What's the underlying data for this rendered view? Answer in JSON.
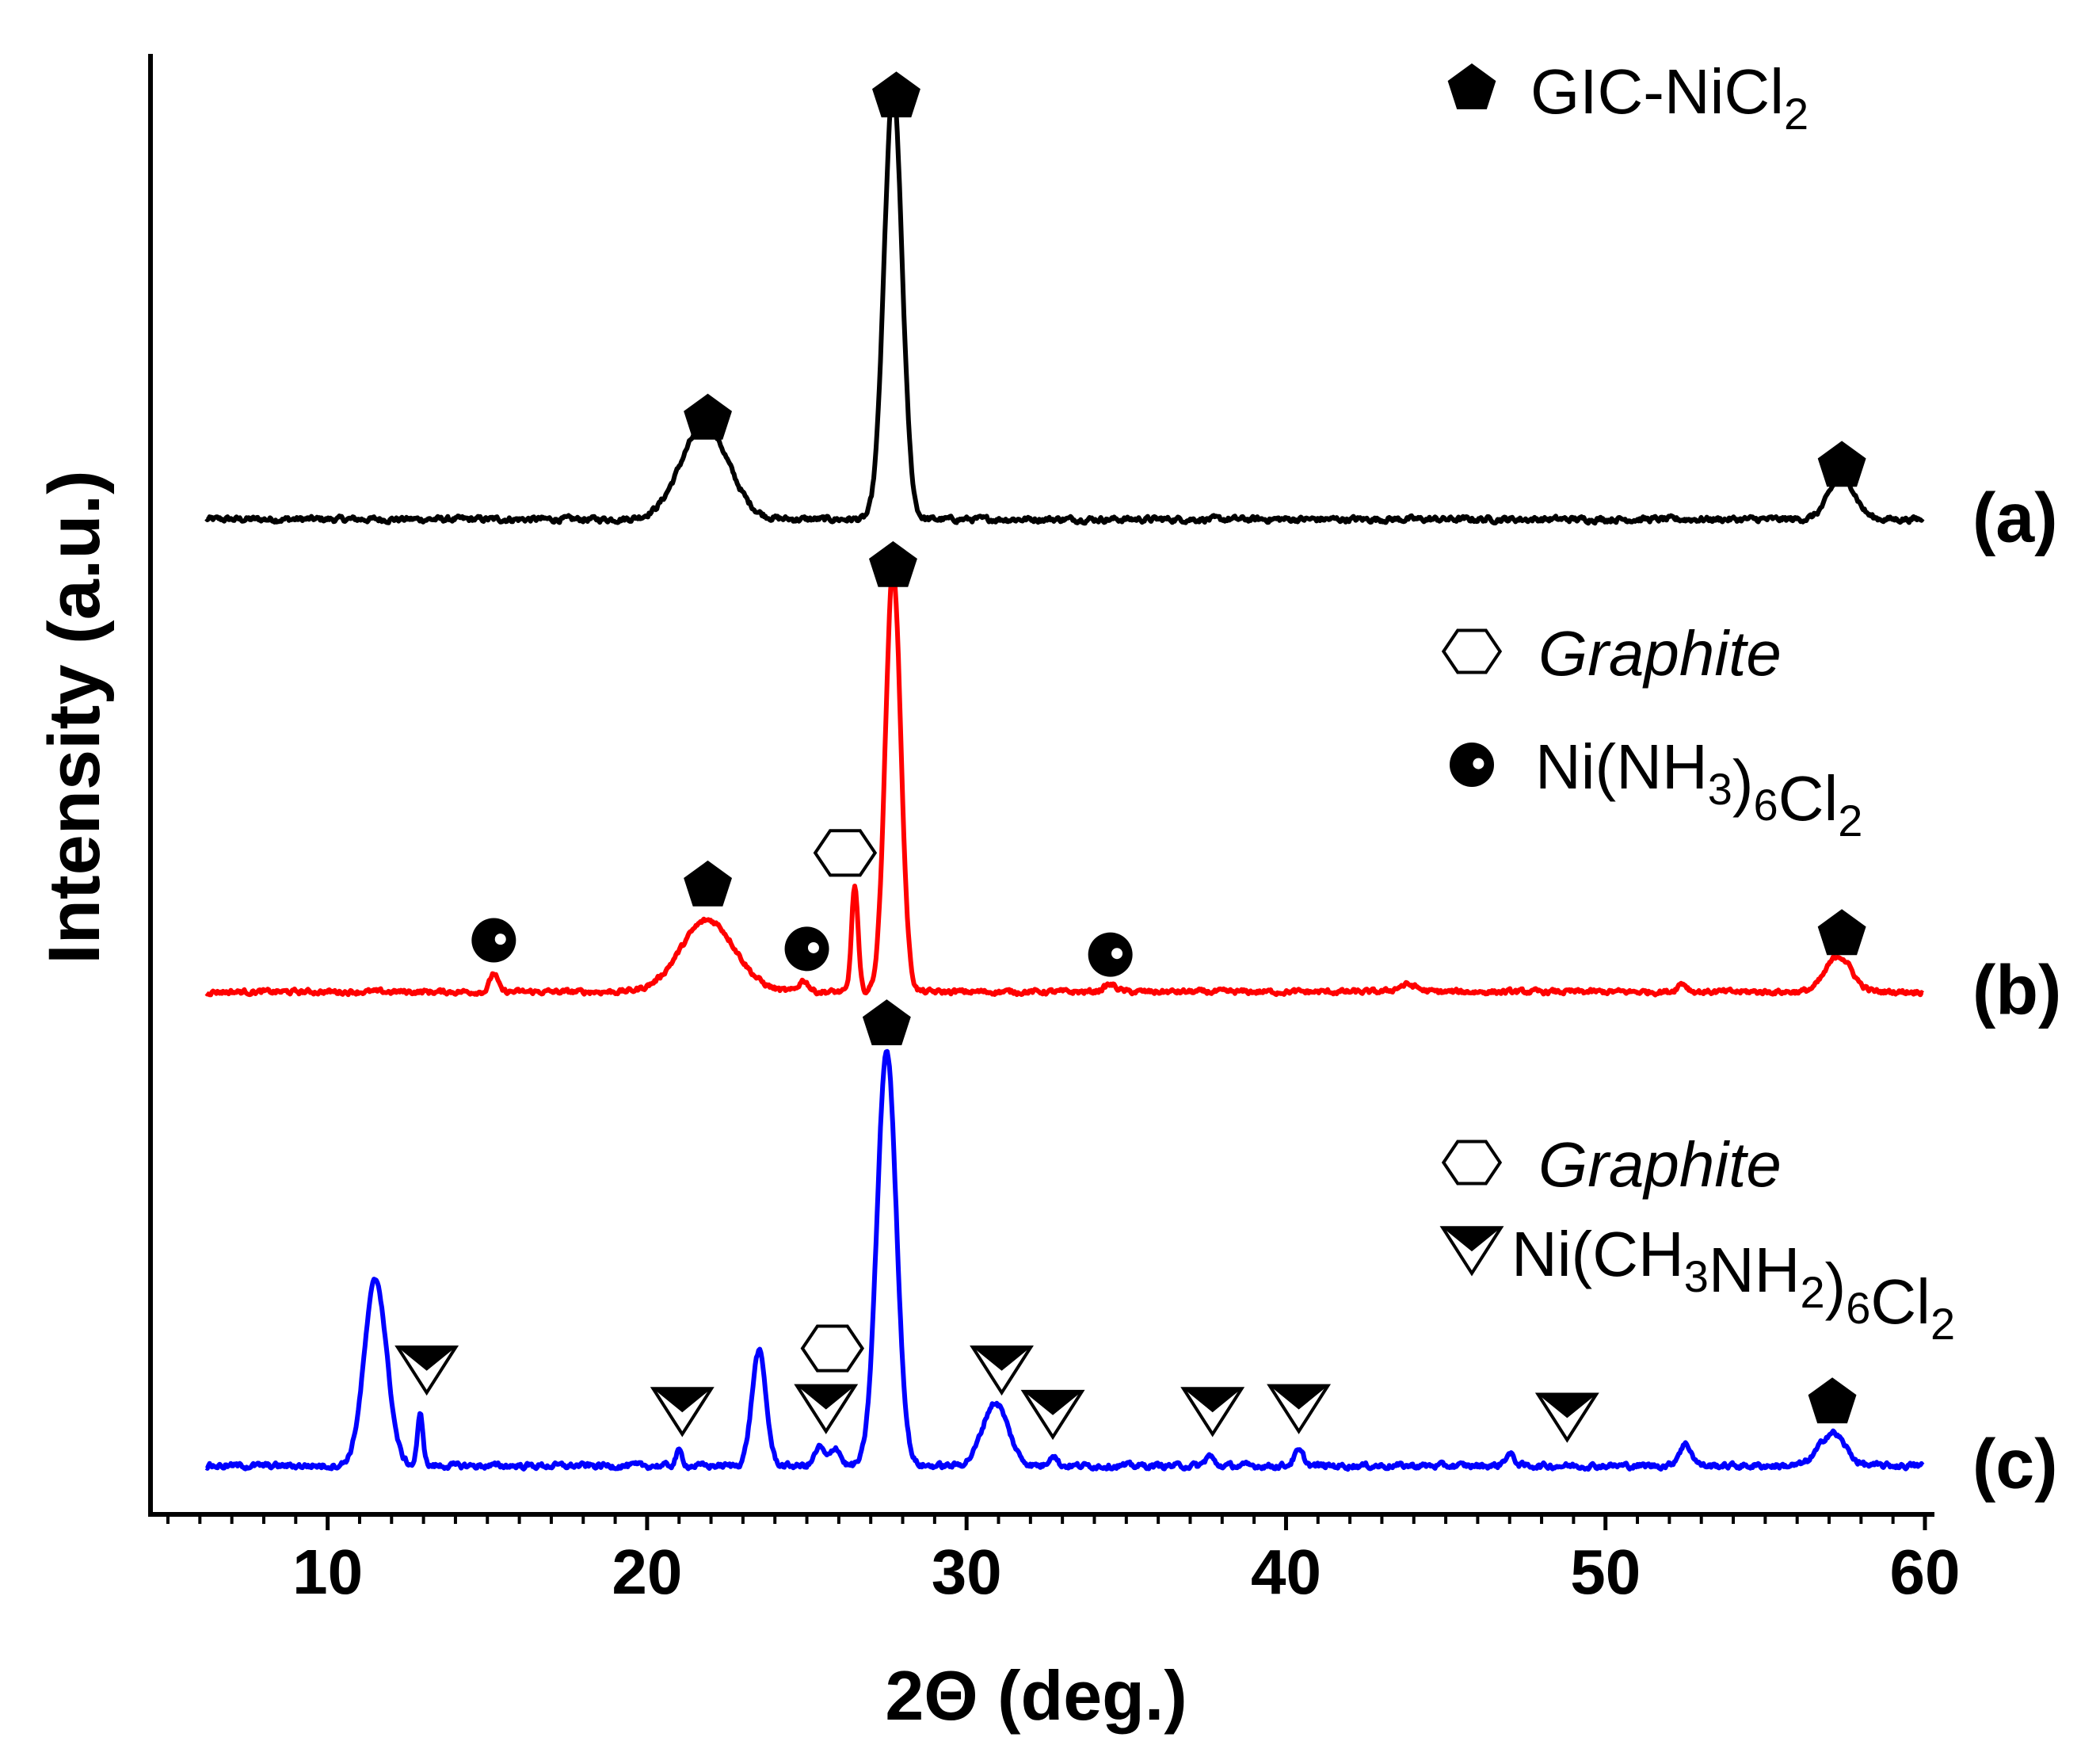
{
  "chart_data": {
    "type": "line",
    "title": "",
    "xlabel": "2Θ (deg.)",
    "ylabel": "Intensity (a.u.)",
    "xlim": [
      5,
      60
    ],
    "ylim": [
      0,
      100
    ],
    "xticks": [
      10,
      20,
      30,
      40,
      50,
      60
    ],
    "grid": false,
    "series": [
      {
        "name": "(a)",
        "color": "#000000",
        "baseline": 67.5,
        "noise": 0.35,
        "peaks": [
          {
            "x": 21.8,
            "h": 6.5,
            "w": 0.75
          },
          {
            "x": 27.7,
            "h": 30.0,
            "w": 0.28
          },
          {
            "x": 57.4,
            "h": 3.0,
            "w": 0.4
          }
        ]
      },
      {
        "name": "(b)",
        "color": "#ff0000",
        "baseline": 34.5,
        "noise": 0.3,
        "peaks": [
          {
            "x": 15.2,
            "h": 1.3,
            "w": 0.12
          },
          {
            "x": 21.9,
            "h": 5.0,
            "w": 0.85
          },
          {
            "x": 24.9,
            "h": 0.8,
            "w": 0.15
          },
          {
            "x": 26.5,
            "h": 7.4,
            "w": 0.1
          },
          {
            "x": 27.7,
            "h": 29.5,
            "w": 0.24
          },
          {
            "x": 34.5,
            "h": 0.5,
            "w": 0.2
          },
          {
            "x": 43.8,
            "h": 0.5,
            "w": 0.3
          },
          {
            "x": 52.4,
            "h": 0.6,
            "w": 0.15
          },
          {
            "x": 57.3,
            "h": 2.5,
            "w": 0.4
          }
        ]
      },
      {
        "name": "(c)",
        "color": "#0000ff",
        "baseline": 1.4,
        "noise": 0.35,
        "peaks": [
          {
            "x": 11.5,
            "h": 13.0,
            "w": 0.35
          },
          {
            "x": 12.9,
            "h": 3.5,
            "w": 0.09
          },
          {
            "x": 21.0,
            "h": 1.0,
            "w": 0.1
          },
          {
            "x": 23.5,
            "h": 8.0,
            "w": 0.22
          },
          {
            "x": 25.4,
            "h": 1.3,
            "w": 0.15
          },
          {
            "x": 25.9,
            "h": 1.3,
            "w": 0.15
          },
          {
            "x": 27.5,
            "h": 29.0,
            "w": 0.3
          },
          {
            "x": 30.9,
            "h": 4.4,
            "w": 0.4
          },
          {
            "x": 32.7,
            "h": 0.8,
            "w": 0.12
          },
          {
            "x": 37.6,
            "h": 0.7,
            "w": 0.12
          },
          {
            "x": 40.4,
            "h": 1.0,
            "w": 0.15
          },
          {
            "x": 47.0,
            "h": 0.8,
            "w": 0.15
          },
          {
            "x": 52.5,
            "h": 1.5,
            "w": 0.2
          },
          {
            "x": 57.1,
            "h": 2.3,
            "w": 0.4
          }
        ]
      }
    ],
    "markers": [
      {
        "type": "pentagon",
        "x": 27.8,
        "y": 97.0
      },
      {
        "type": "pentagon",
        "x": 21.9,
        "y": 74.5
      },
      {
        "type": "pentagon",
        "x": 57.4,
        "y": 71.2
      },
      {
        "type": "pentagon",
        "x": 27.7,
        "y": 64.2
      },
      {
        "type": "pentagon",
        "x": 21.9,
        "y": 41.9
      },
      {
        "type": "pentagon",
        "x": 57.4,
        "y": 38.5
      },
      {
        "type": "pentagon",
        "x": 27.5,
        "y": 32.2
      },
      {
        "type": "pentagon",
        "x": 57.1,
        "y": 5.8
      },
      {
        "type": "hexagon",
        "x": 26.2,
        "y": 44.2
      },
      {
        "type": "hexagon",
        "x": 25.8,
        "y": 9.6
      },
      {
        "type": "dot",
        "x": 15.2,
        "y": 38.1
      },
      {
        "type": "dot",
        "x": 25.0,
        "y": 37.5
      },
      {
        "type": "dot",
        "x": 34.5,
        "y": 37.1
      },
      {
        "type": "triangle",
        "x": 13.1,
        "y": 8.1
      },
      {
        "type": "triangle",
        "x": 21.1,
        "y": 5.2
      },
      {
        "type": "triangle",
        "x": 25.6,
        "y": 5.4
      },
      {
        "type": "triangle",
        "x": 31.1,
        "y": 8.1
      },
      {
        "type": "triangle",
        "x": 32.7,
        "y": 5.0
      },
      {
        "type": "triangle",
        "x": 37.7,
        "y": 5.2
      },
      {
        "type": "triangle",
        "x": 40.4,
        "y": 5.4
      },
      {
        "type": "triangle",
        "x": 48.8,
        "y": 4.8
      }
    ],
    "curve_labels": [
      {
        "text": "(a)",
        "y": 67.5
      },
      {
        "text": "(b)",
        "y": 34.5
      },
      {
        "text": "(c)",
        "y": 1.4
      }
    ],
    "legend": [
      {
        "symbol": "pentagon",
        "text": "GIC-NiCl",
        "sub": "2",
        "tail": "",
        "sub2": "",
        "italic": false
      },
      {
        "symbol": "hexagon",
        "text": "Graphite",
        "sub": "",
        "tail": "",
        "sub2": "",
        "italic": true
      },
      {
        "symbol": "dot",
        "text": "Ni(NH",
        "sub": "3",
        "tail": ")",
        "sub2": "6",
        "end": "Cl",
        "sub3": "2",
        "italic": false
      },
      {
        "symbol": "hexagon",
        "text": "Graphite",
        "sub": "",
        "tail": "",
        "sub2": "",
        "italic": true
      },
      {
        "symbol": "triangle",
        "text": "Ni(CH",
        "sub": "3",
        "tail": "NH",
        "sub2": "2",
        "end": ")",
        "sub3": "6",
        "end2": "Cl",
        "sub4": "2",
        "italic": false
      }
    ]
  }
}
